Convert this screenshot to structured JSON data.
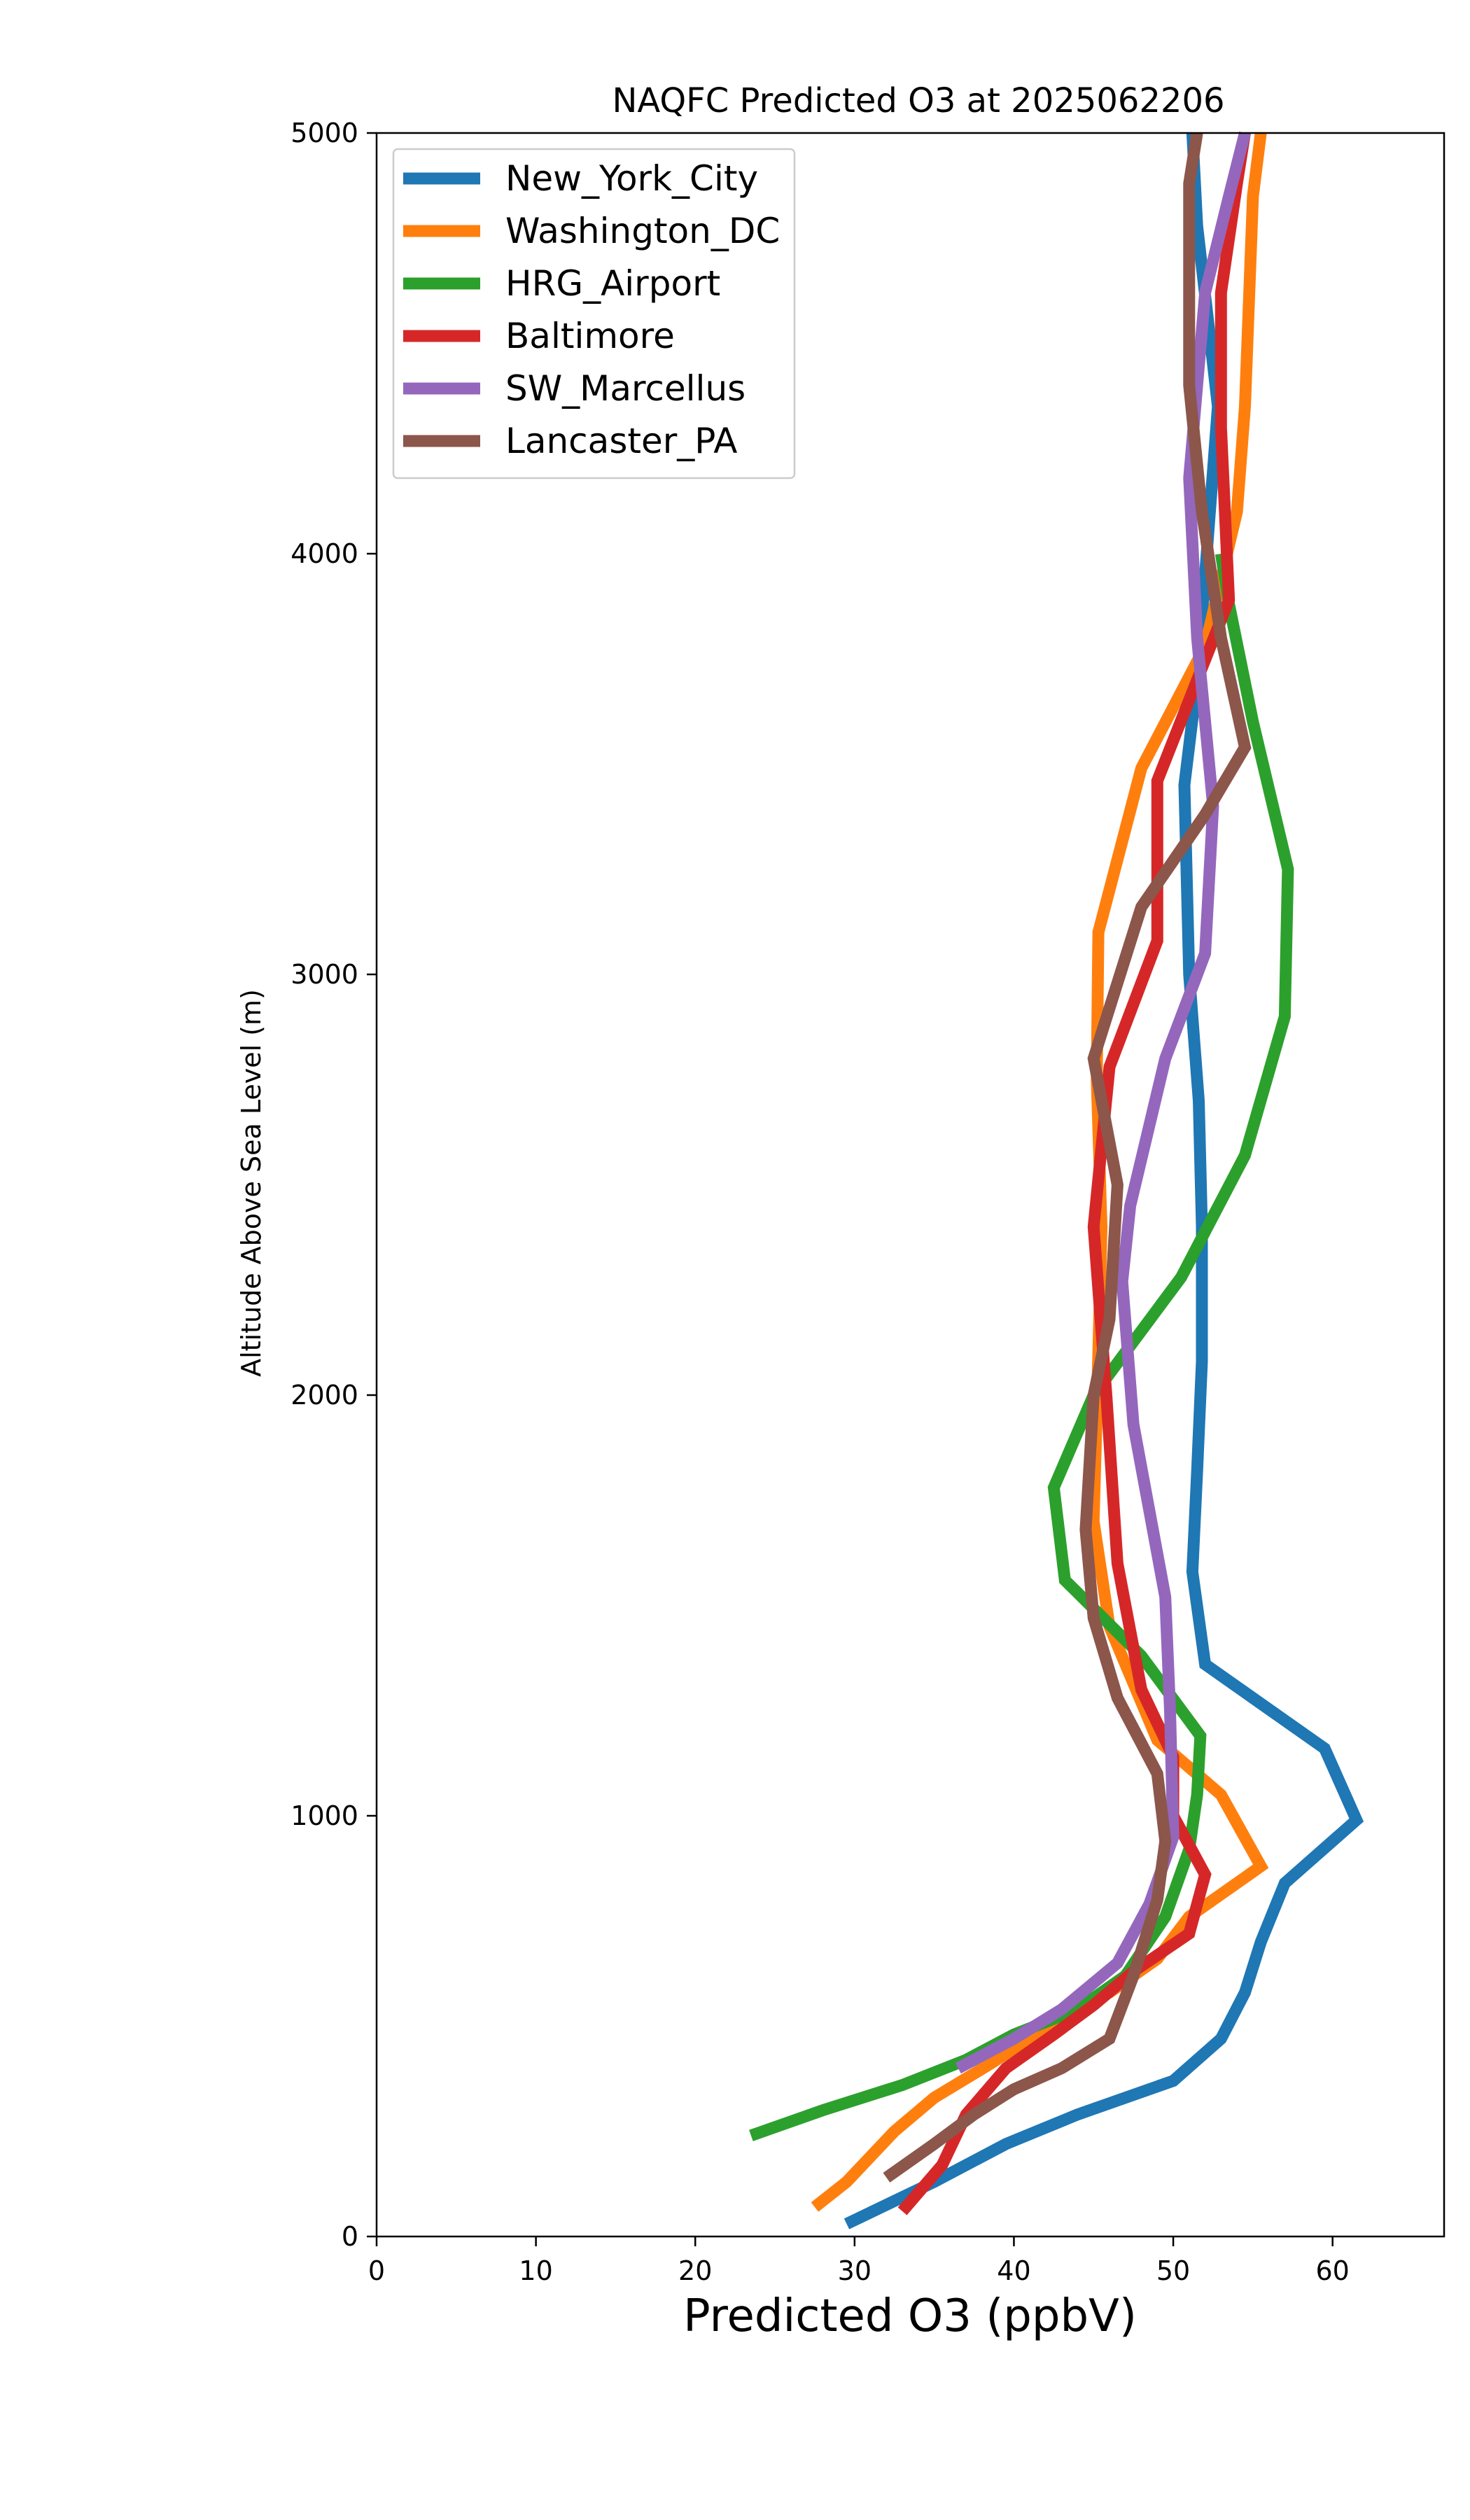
{
  "chart_data": {
    "type": "line",
    "title": "NAQFC Predicted O3 at 2025062206",
    "xlabel": "Predicted O3 (ppbV)",
    "ylabel": "Altitude Above Sea Level (m)",
    "xlim": [
      0,
      67
    ],
    "ylim": [
      0,
      5000
    ],
    "xticks": [
      0,
      10,
      20,
      30,
      40,
      50,
      60
    ],
    "yticks": [
      0,
      1000,
      2000,
      3000,
      4000,
      5000
    ],
    "grid": false,
    "legend_position": "upper-left",
    "series": [
      {
        "name": "New_York_City",
        "color": "#1f77b4",
        "points": [
          [
            29.5,
            30
          ],
          [
            35,
            130
          ],
          [
            39.5,
            220
          ],
          [
            44,
            290
          ],
          [
            50,
            370
          ],
          [
            53,
            470
          ],
          [
            54.5,
            580
          ],
          [
            55.5,
            700
          ],
          [
            57,
            840
          ],
          [
            61.5,
            990
          ],
          [
            59.5,
            1160
          ],
          [
            52,
            1360
          ],
          [
            51.2,
            1580
          ],
          [
            51.5,
            1820
          ],
          [
            51.8,
            2080
          ],
          [
            51.8,
            2400
          ],
          [
            51.6,
            2700
          ],
          [
            51,
            3000
          ],
          [
            50.7,
            3450
          ],
          [
            51.5,
            3700
          ],
          [
            52.8,
            4350
          ],
          [
            51.5,
            4780
          ],
          [
            51.2,
            5000
          ]
        ]
      },
      {
        "name": "Washington_DC",
        "color": "#ff7f0e",
        "points": [
          [
            27.5,
            70
          ],
          [
            29.5,
            130
          ],
          [
            32.5,
            250
          ],
          [
            35,
            330
          ],
          [
            38.5,
            410
          ],
          [
            43,
            520
          ],
          [
            46,
            580
          ],
          [
            49,
            660
          ],
          [
            51,
            760
          ],
          [
            55.5,
            880
          ],
          [
            53,
            1050
          ],
          [
            49,
            1180
          ],
          [
            46,
            1450
          ],
          [
            45,
            1700
          ],
          [
            45.3,
            2100
          ],
          [
            45.5,
            2400
          ],
          [
            45.2,
            2750
          ],
          [
            45.3,
            3100
          ],
          [
            48,
            3490
          ],
          [
            52,
            3780
          ],
          [
            54,
            4100
          ],
          [
            54.5,
            4350
          ],
          [
            55,
            4850
          ],
          [
            55.5,
            5000
          ]
        ]
      },
      {
        "name": "HRG_Airport",
        "color": "#2ca02c",
        "points": [
          [
            23.5,
            240
          ],
          [
            28,
            300
          ],
          [
            33,
            360
          ],
          [
            37,
            420
          ],
          [
            40,
            480
          ],
          [
            44,
            540
          ],
          [
            47,
            620
          ],
          [
            49.5,
            760
          ],
          [
            51,
            920
          ],
          [
            51.5,
            1050
          ],
          [
            51.7,
            1190
          ],
          [
            48,
            1380
          ],
          [
            43.2,
            1560
          ],
          [
            42.5,
            1780
          ],
          [
            45,
            2000
          ],
          [
            50.5,
            2280
          ],
          [
            54.5,
            2570
          ],
          [
            57,
            2900
          ],
          [
            57.2,
            3250
          ],
          [
            55,
            3600
          ],
          [
            53.5,
            3880
          ],
          [
            53,
            4000
          ]
        ]
      },
      {
        "name": "Baltimore",
        "color": "#d62728",
        "points": [
          [
            33,
            60
          ],
          [
            35.5,
            170
          ],
          [
            37,
            290
          ],
          [
            39.5,
            400
          ],
          [
            42.5,
            480
          ],
          [
            45,
            550
          ],
          [
            47.5,
            630
          ],
          [
            51,
            720
          ],
          [
            52,
            860
          ],
          [
            50,
            1000
          ],
          [
            50,
            1140
          ],
          [
            48,
            1300
          ],
          [
            46.5,
            1600
          ],
          [
            45.8,
            2000
          ],
          [
            45,
            2400
          ],
          [
            46,
            2780
          ],
          [
            49,
            3080
          ],
          [
            49,
            3460
          ],
          [
            51.5,
            3700
          ],
          [
            53.5,
            3890
          ],
          [
            53,
            4300
          ],
          [
            53,
            4620
          ],
          [
            54,
            4880
          ],
          [
            54.5,
            5000
          ]
        ]
      },
      {
        "name": "SW_Marcellus",
        "color": "#9467bd",
        "points": [
          [
            36.5,
            400
          ],
          [
            40,
            470
          ],
          [
            43,
            540
          ],
          [
            46.5,
            650
          ],
          [
            48.5,
            790
          ],
          [
            50,
            950
          ],
          [
            49.8,
            1250
          ],
          [
            49.5,
            1520
          ],
          [
            47.5,
            1930
          ],
          [
            46.8,
            2270
          ],
          [
            47.3,
            2450
          ],
          [
            49.5,
            2800
          ],
          [
            52,
            3050
          ],
          [
            52.5,
            3400
          ],
          [
            51.5,
            3800
          ],
          [
            51,
            4180
          ],
          [
            52,
            4620
          ],
          [
            53.5,
            4850
          ],
          [
            54.5,
            5000
          ]
        ]
      },
      {
        "name": "Lancaster_PA",
        "color": "#8c564b",
        "points": [
          [
            32,
            140
          ],
          [
            35,
            220
          ],
          [
            37.5,
            290
          ],
          [
            40,
            350
          ],
          [
            43,
            400
          ],
          [
            46,
            470
          ],
          [
            47.5,
            620
          ],
          [
            49,
            800
          ],
          [
            49.5,
            940
          ],
          [
            49,
            1100
          ],
          [
            46.5,
            1280
          ],
          [
            45,
            1470
          ],
          [
            44.5,
            1680
          ],
          [
            45,
            2000
          ],
          [
            46,
            2180
          ],
          [
            46.5,
            2500
          ],
          [
            45,
            2800
          ],
          [
            48,
            3160
          ],
          [
            52,
            3380
          ],
          [
            54.5,
            3540
          ],
          [
            53,
            3800
          ],
          [
            51.8,
            4100
          ],
          [
            51,
            4400
          ],
          [
            51,
            4880
          ],
          [
            51.5,
            5000
          ]
        ]
      }
    ]
  }
}
